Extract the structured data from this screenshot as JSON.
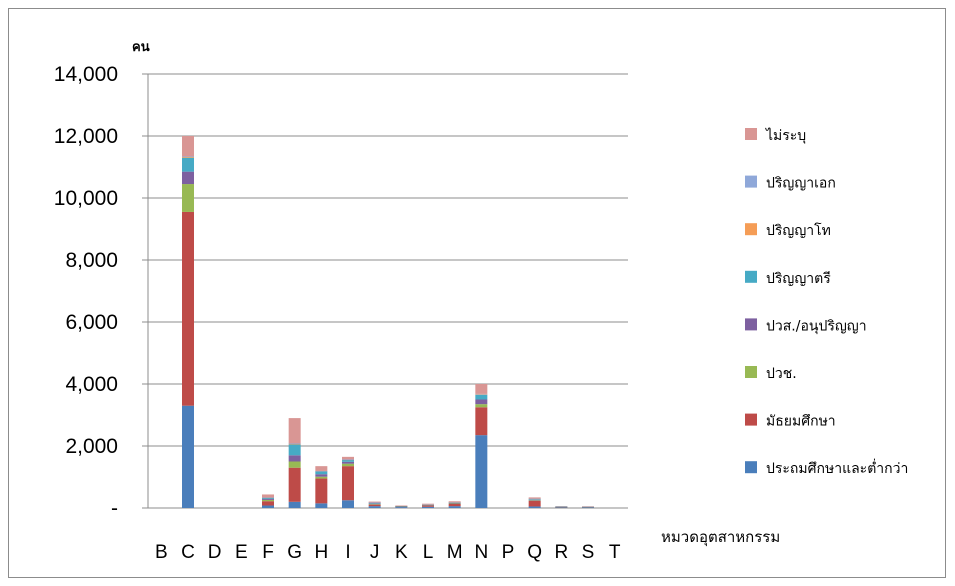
{
  "chart_data": {
    "type": "bar",
    "stacked": true,
    "ylabel": "คน",
    "xlabel": "หมวดอุตสาหกรรม",
    "ylim": [
      0,
      14000
    ],
    "yticks": [
      0,
      2000,
      4000,
      6000,
      8000,
      10000,
      12000,
      14000
    ],
    "ytick_labels": [
      "-",
      "2,000",
      "4,000",
      "6,000",
      "8,000",
      "10,000",
      "12,000",
      "14,000"
    ],
    "grid": true,
    "legend_position": "right",
    "categories": [
      "B",
      "C",
      "D",
      "E",
      "F",
      "G",
      "H",
      "I",
      "J",
      "K",
      "L",
      "M",
      "N",
      "P",
      "Q",
      "R",
      "S",
      "T"
    ],
    "series": [
      {
        "name": "ประถมศึกษาและต่ำกว่า",
        "color": "#4a7ebb",
        "values": [
          0,
          3300,
          0,
          0,
          80,
          200,
          150,
          250,
          60,
          30,
          40,
          60,
          2350,
          0,
          50,
          20,
          15,
          0
        ]
      },
      {
        "name": "มัธยมศึกษา",
        "color": "#be4b48",
        "values": [
          0,
          6250,
          0,
          0,
          140,
          1100,
          800,
          1100,
          50,
          20,
          40,
          70,
          900,
          0,
          180,
          10,
          15,
          0
        ]
      },
      {
        "name": "ปวช.",
        "color": "#98b954",
        "values": [
          0,
          900,
          0,
          0,
          40,
          200,
          60,
          80,
          15,
          5,
          10,
          15,
          100,
          0,
          15,
          5,
          5,
          0
        ]
      },
      {
        "name": "ปวส./อนุปริญญา",
        "color": "#7d60a0",
        "values": [
          0,
          400,
          0,
          0,
          30,
          200,
          80,
          60,
          15,
          5,
          10,
          15,
          150,
          0,
          20,
          5,
          5,
          0
        ]
      },
      {
        "name": "ปริญญาตรี",
        "color": "#46aac5",
        "values": [
          0,
          450,
          0,
          0,
          40,
          350,
          90,
          60,
          30,
          10,
          15,
          20,
          150,
          0,
          30,
          10,
          5,
          0
        ]
      },
      {
        "name": "ปริญญาโท",
        "color": "#f59d56",
        "values": [
          0,
          30,
          0,
          0,
          5,
          20,
          10,
          10,
          5,
          0,
          3,
          5,
          20,
          0,
          5,
          0,
          0,
          0
        ]
      },
      {
        "name": "ปริญญาเอก",
        "color": "#8fa8d9",
        "values": [
          0,
          10,
          0,
          0,
          2,
          10,
          5,
          5,
          2,
          0,
          1,
          2,
          10,
          0,
          2,
          0,
          0,
          0
        ]
      },
      {
        "name": "ไม่ระบุ",
        "color": "#d99694",
        "values": [
          0,
          660,
          0,
          0,
          100,
          820,
          155,
          85,
          30,
          10,
          20,
          30,
          320,
          0,
          40,
          10,
          10,
          0
        ]
      }
    ]
  }
}
